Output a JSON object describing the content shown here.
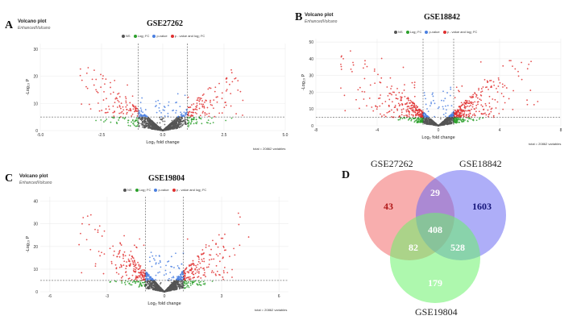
{
  "panels": [
    {
      "letter": "A",
      "plot_title": "Volcano plot",
      "subtitle": "EnhancedVolcano",
      "dataset": "GSE27262",
      "legend": [
        "NS",
        "Log₂ FC",
        "p-value",
        "p - value and log₂ FC"
      ],
      "footnote": "total = 20862 variables"
    },
    {
      "letter": "B",
      "plot_title": "Volcano plot",
      "subtitle": "EnhancedVolcano",
      "dataset": "GSE18842",
      "legend": [
        "NS",
        "Log₂ FC",
        "p-value",
        "p - value and log₂ FC"
      ],
      "footnote": "total = 20862 variables"
    },
    {
      "letter": "C",
      "plot_title": "Volcano plot",
      "subtitle": "EnhancedVolcano",
      "dataset": "GSE19804",
      "legend": [
        "NS",
        "Log₂ FC",
        "p-value",
        "p - value and log₂ FC"
      ],
      "footnote": "total = 20862 variables"
    }
  ],
  "venn": {
    "letter": "D",
    "sets": [
      "GSE27262",
      "GSE18842",
      "GSE19804"
    ],
    "colors": [
      "#f26b6b",
      "#6b6bf2",
      "#6bf26b"
    ]
  },
  "chart_data": [
    {
      "type": "scatter",
      "subtype": "volcano",
      "title": "GSE27262",
      "xlabel": "Log₂ fold change",
      "ylabel": "-Log₁₀ P",
      "xlim": [
        -5,
        5
      ],
      "ylim": [
        0,
        32
      ],
      "xticks": [
        "-5.0",
        "-2.5",
        "0.0",
        "2.5",
        "5.0"
      ],
      "yticks": [
        "0",
        "10",
        "20",
        "30"
      ],
      "fc_cutoff": 1,
      "p_cutoff_y": 5,
      "series_colors": {
        "NS": "#555555",
        "Log2 FC": "#2ca02c",
        "p-value": "#4a7fe0",
        "both": "#e03030"
      },
      "max_abs_x": 3.4,
      "max_y": 24,
      "total": 20862
    },
    {
      "type": "scatter",
      "subtype": "volcano",
      "title": "GSE18842",
      "xlabel": "Log₂ fold change",
      "ylabel": "-Log₁₀ P",
      "xlim": [
        -8,
        8
      ],
      "ylim": [
        0,
        52
      ],
      "xticks": [
        "-8",
        "-4",
        "0",
        "4",
        "8"
      ],
      "yticks": [
        "0",
        "10",
        "20",
        "30",
        "40",
        "50"
      ],
      "fc_cutoff": 1,
      "p_cutoff_y": 5,
      "series_colors": {
        "NS": "#555555",
        "Log2 FC": "#2ca02c",
        "p-value": "#4a7fe0",
        "both": "#e03030"
      },
      "max_abs_x": 6.5,
      "max_y": 47,
      "total": 20862
    },
    {
      "type": "scatter",
      "subtype": "volcano",
      "title": "GSE19804",
      "xlabel": "Log₂ fold change",
      "ylabel": "-Log₁₀ P",
      "xlim": [
        -6.5,
        6.5
      ],
      "ylim": [
        0,
        42
      ],
      "xticks": [
        "-6",
        "-3",
        "0",
        "3",
        "6"
      ],
      "yticks": [
        "0",
        "10",
        "20",
        "30",
        "40"
      ],
      "fc_cutoff": 1,
      "p_cutoff_y": 5,
      "series_colors": {
        "NS": "#555555",
        "Log2 FC": "#2ca02c",
        "p-value": "#4a7fe0",
        "both": "#e03030"
      },
      "max_abs_x": 4.5,
      "max_y": 36,
      "total": 20862
    },
    {
      "type": "venn",
      "sets": [
        "GSE27262",
        "GSE18842",
        "GSE19804"
      ],
      "regions": {
        "GSE27262_only": "43",
        "GSE18842_only": "1603",
        "GSE19804_only": "179",
        "GSE27262_GSE18842": "29",
        "GSE27262_GSE19804": "82",
        "GSE18842_GSE19804": "528",
        "all_three": "408"
      }
    }
  ]
}
